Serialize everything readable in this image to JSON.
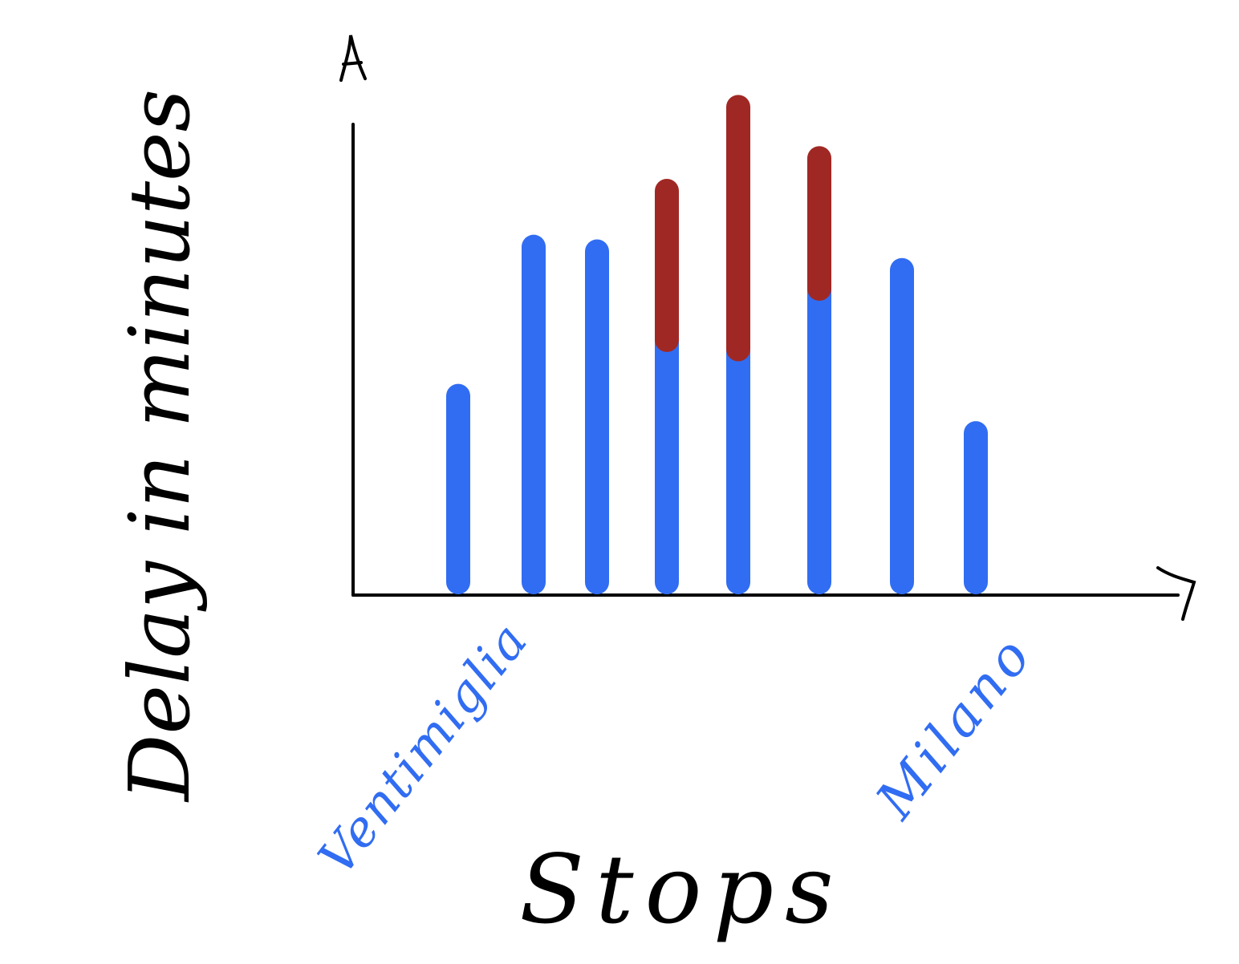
{
  "chart_data": {
    "type": "bar",
    "stacked": true,
    "title": "",
    "xlabel": "Stops",
    "ylabel": "Delay in minutes",
    "categories": [
      "Ventimiglia",
      "",
      "",
      "",
      "",
      "",
      "",
      "Milano"
    ],
    "series": [
      {
        "values": [
          40,
          72,
          71,
          52,
          50,
          63,
          67,
          32
        ]
      },
      {
        "values": [
          0,
          0,
          0,
          32,
          52,
          28,
          0,
          0
        ]
      }
    ],
    "ylim": [
      0,
      100
    ],
    "grid": false,
    "legend": "none",
    "colors": {
      "base": "#316DF2",
      "extra": "#A02824",
      "axis": "#000000",
      "category_labels": "#316DF2",
      "axis_titles": "#000000"
    }
  }
}
